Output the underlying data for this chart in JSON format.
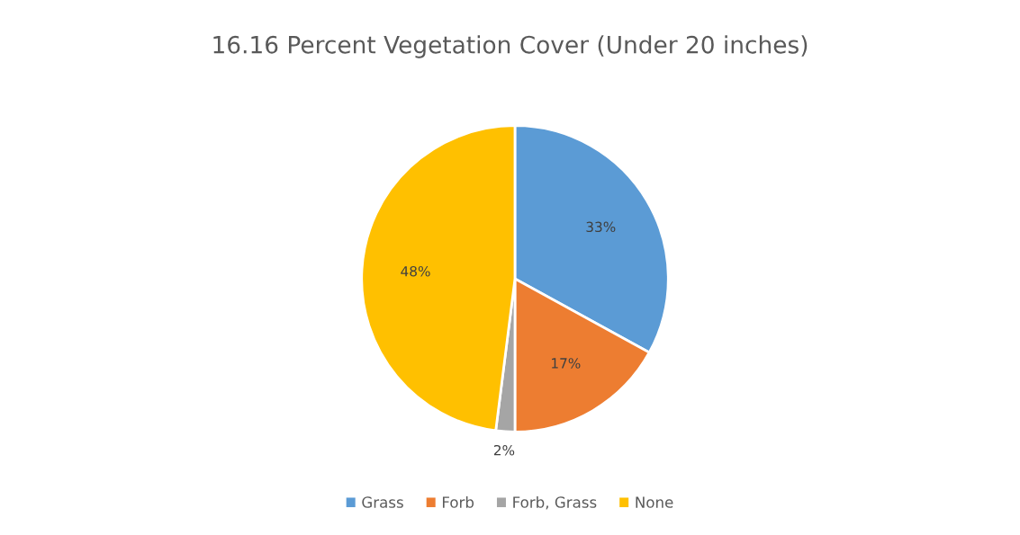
{
  "chart_data": {
    "type": "pie",
    "title": "16.16 Percent Vegetation Cover (Under 20 inches)",
    "categories": [
      "Grass",
      "Forb",
      "Forb, Grass",
      "None"
    ],
    "values": [
      33,
      17,
      2,
      48
    ],
    "colors": [
      "#5b9bd5",
      "#ed7d31",
      "#a5a5a5",
      "#ffc000"
    ],
    "value_labels": [
      "33%",
      "17%",
      "2%",
      "48%"
    ],
    "legend": "bottom"
  }
}
